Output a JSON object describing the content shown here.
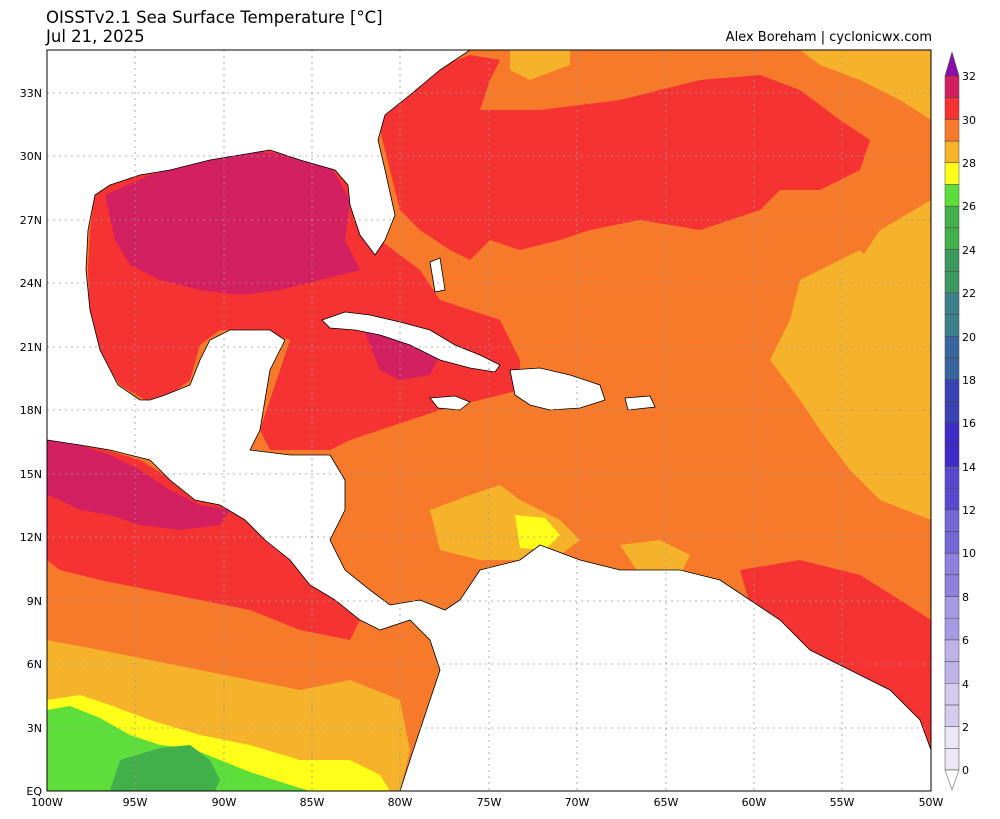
{
  "title": "OISSTv2.1 Sea Surface Temperature [°C]",
  "date": "Jul 21, 2025",
  "credit": "Alex Boreham | cyclonicwx.com",
  "axes": {
    "lon_labels": [
      "100W",
      "95W",
      "90W",
      "85W",
      "80W",
      "75W",
      "70W",
      "65W",
      "60W",
      "55W",
      "50W"
    ],
    "lat_labels": [
      "EQ",
      "3N",
      "6N",
      "9N",
      "12N",
      "15N",
      "18N",
      "21N",
      "24N",
      "27N",
      "30N",
      "33N"
    ]
  },
  "colorbar": {
    "labels": [
      "0",
      "2",
      "4",
      "6",
      "8",
      "10",
      "12",
      "14",
      "16",
      "18",
      "20",
      "22",
      "24",
      "26",
      "28",
      "30",
      "32"
    ],
    "min": 0,
    "max": 32,
    "step": 1,
    "colors": {
      "0": "#ebe7f5",
      "2": "#d3ccef",
      "4": "#bdb3e9",
      "6": "#a69ae3",
      "8": "#8f80dd",
      "10": "#7566d6",
      "12": "#5a49cf",
      "14": "#3d2cc7",
      "16": "#3a43b3",
      "18": "#3a66a0",
      "20": "#3b808a",
      "22": "#3d9860",
      "24": "#42b04a",
      "26": "#5ede3a",
      "27": "#ffff1a",
      "28": "#f6b22a",
      "29": "#f67a2a",
      "30": "#f53333",
      "31": "#d22060",
      "32": "#a0128e"
    }
  }
}
